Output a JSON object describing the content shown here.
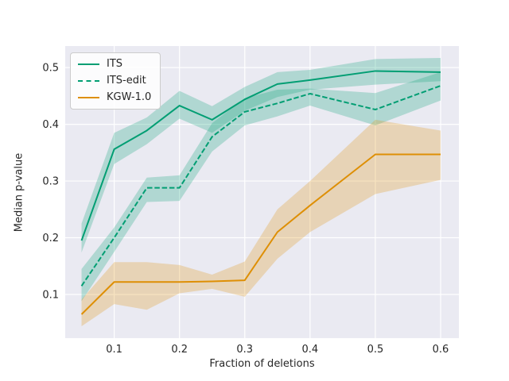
{
  "figure": {
    "background": "#ffffff",
    "plot_background": "#eaeaf2",
    "grid_color": "#ffffff",
    "text_color": "#262626"
  },
  "chart_data": {
    "type": "line",
    "title": "",
    "xlabel": "Fraction of deletions",
    "ylabel": "Median p-value",
    "grid": true,
    "legend_position": "upper-left",
    "xlim": [
      0.025,
      0.628
    ],
    "ylim": [
      0.023,
      0.538
    ],
    "xticks": [
      0.1,
      0.2,
      0.3,
      0.4,
      0.5,
      0.6
    ],
    "yticks": [
      0.1,
      0.2,
      0.3,
      0.4,
      0.5
    ],
    "x": [
      0.05,
      0.1,
      0.15,
      0.2,
      0.25,
      0.3,
      0.35,
      0.4,
      0.5,
      0.6
    ],
    "series": [
      {
        "name": "ITS",
        "color": "#029e73",
        "style": "solid",
        "values": [
          0.195,
          0.356,
          0.389,
          0.433,
          0.408,
          0.444,
          0.471,
          0.478,
          0.494,
          0.492
        ],
        "band_low": [
          0.174,
          0.33,
          0.365,
          0.41,
          0.385,
          0.424,
          0.448,
          0.461,
          0.47,
          0.476
        ],
        "band_high": [
          0.225,
          0.385,
          0.412,
          0.459,
          0.432,
          0.466,
          0.492,
          0.496,
          0.515,
          0.517
        ]
      },
      {
        "name": "ITS-edit",
        "color": "#029e73",
        "style": "dashed",
        "values": [
          0.115,
          0.2,
          0.288,
          0.288,
          0.378,
          0.422,
          0.437,
          0.454,
          0.426,
          0.468
        ],
        "band_low": [
          0.088,
          0.175,
          0.263,
          0.265,
          0.352,
          0.398,
          0.414,
          0.433,
          0.398,
          0.442
        ],
        "band_high": [
          0.145,
          0.218,
          0.306,
          0.31,
          0.402,
          0.446,
          0.461,
          0.463,
          0.455,
          0.492
        ]
      },
      {
        "name": "KGW-1.0",
        "color": "#de8f05",
        "style": "solid",
        "values": [
          0.065,
          0.122,
          0.122,
          0.122,
          0.123,
          0.125,
          0.21,
          0.257,
          0.347,
          0.347
        ],
        "band_low": [
          0.044,
          0.083,
          0.073,
          0.102,
          0.11,
          0.096,
          0.163,
          0.21,
          0.277,
          0.302
        ],
        "band_high": [
          0.091,
          0.157,
          0.157,
          0.152,
          0.135,
          0.158,
          0.25,
          0.3,
          0.408,
          0.389
        ]
      }
    ]
  }
}
